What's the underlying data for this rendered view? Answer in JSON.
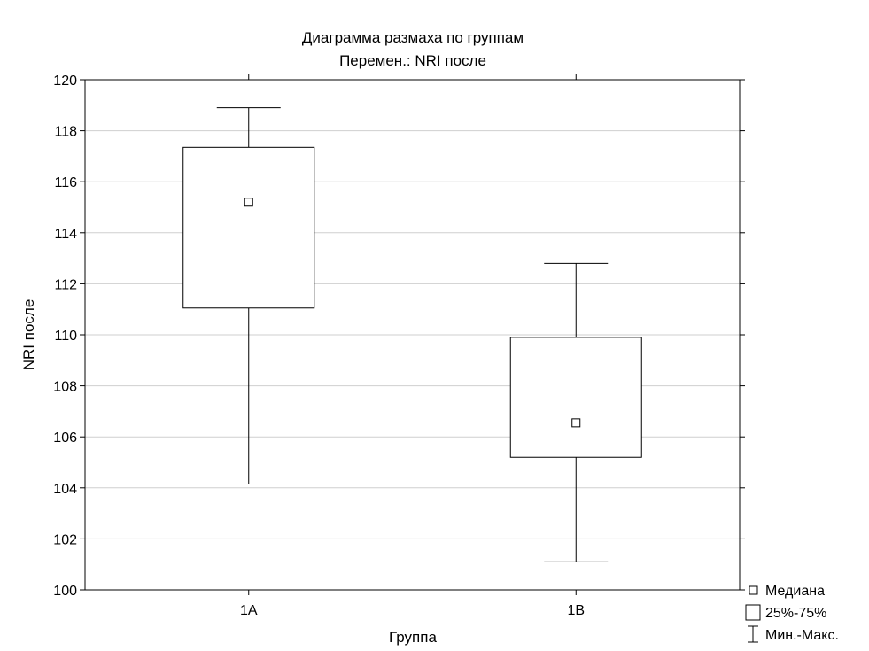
{
  "chart_data": {
    "type": "box",
    "title": "Диаграмма размаха по группам",
    "subtitle": "Перемен.: NRI после",
    "xlabel": "Группа",
    "ylabel": "NRI после",
    "ylim": [
      100,
      120
    ],
    "yticks": [
      100,
      102,
      104,
      106,
      108,
      110,
      112,
      114,
      116,
      118,
      120
    ],
    "grid": true,
    "categories": [
      "1A",
      "1B"
    ],
    "boxes": [
      {
        "category": "1A",
        "min": 104.15,
        "q1": 111.05,
        "median": 115.2,
        "q3": 117.35,
        "max": 118.9
      },
      {
        "category": "1B",
        "min": 101.1,
        "q1": 105.2,
        "median": 106.55,
        "q3": 109.9,
        "max": 112.8
      }
    ],
    "legend": {
      "placement": "bottom-right",
      "items": [
        {
          "symbol": "median",
          "label": "Медиана"
        },
        {
          "symbol": "box",
          "label": "25%-75%"
        },
        {
          "symbol": "whisker",
          "label": "Мин.-Макс."
        }
      ]
    }
  }
}
